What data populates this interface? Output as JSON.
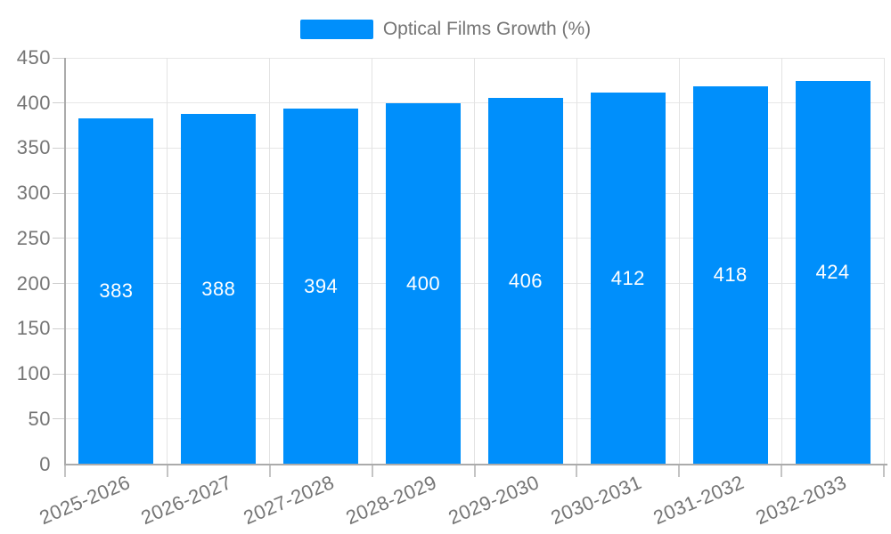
{
  "legend": {
    "series_label": "Optical Films Growth (%)",
    "swatch_color": "#008FFB"
  },
  "chart_data": {
    "type": "bar",
    "title": "",
    "series_name": "Optical Films Growth (%)",
    "categories": [
      "2025-2026",
      "2026-2027",
      "2027-2028",
      "2028-2029",
      "2029-2030",
      "2030-2031",
      "2031-2032",
      "2032-2033"
    ],
    "values": [
      383,
      388,
      394,
      400,
      406,
      412,
      418,
      424
    ],
    "yticks": [
      0,
      50,
      100,
      150,
      200,
      250,
      300,
      350,
      400,
      450
    ],
    "ylim": [
      0,
      450
    ],
    "xlabel": "",
    "ylabel": "",
    "grid": true,
    "legend_position": "top-center",
    "x_label_rotation_deg": -23,
    "bar_color": "#008FFB",
    "value_label_color": "#ffffff",
    "axis_label_color": "#757575",
    "grid_color": "#e7e7e7"
  }
}
